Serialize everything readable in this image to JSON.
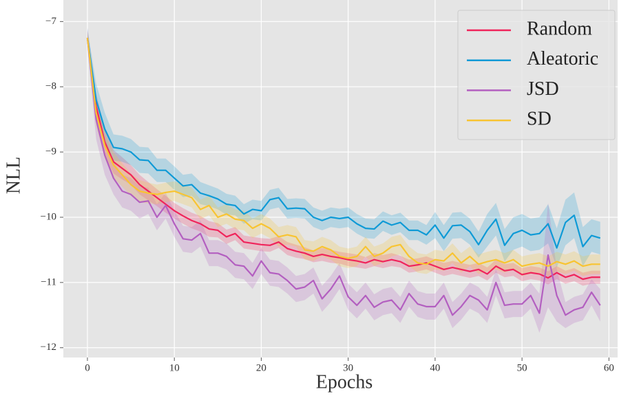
{
  "chart_data": {
    "type": "line",
    "xlabel": "Epochs",
    "ylabel": "NLL",
    "x": [
      0,
      1,
      2,
      3,
      4,
      5,
      6,
      7,
      8,
      9,
      10,
      11,
      12,
      13,
      14,
      15,
      16,
      17,
      18,
      19,
      20,
      21,
      22,
      23,
      24,
      25,
      26,
      27,
      28,
      29,
      30,
      31,
      32,
      33,
      34,
      35,
      36,
      37,
      38,
      39,
      40,
      41,
      42,
      43,
      44,
      45,
      46,
      47,
      48,
      49,
      50,
      51,
      52,
      53,
      54,
      55,
      56,
      57,
      58,
      59
    ],
    "series": [
      {
        "name": "Random",
        "color": "#f0245b",
        "values": [
          -7.25,
          -8.3,
          -8.85,
          -9.15,
          -9.25,
          -9.35,
          -9.5,
          -9.6,
          -9.7,
          -9.8,
          -9.9,
          -9.98,
          -10.05,
          -10.1,
          -10.18,
          -10.2,
          -10.3,
          -10.25,
          -10.38,
          -10.4,
          -10.42,
          -10.43,
          -10.38,
          -10.48,
          -10.52,
          -10.55,
          -10.6,
          -10.57,
          -10.6,
          -10.62,
          -10.65,
          -10.67,
          -10.7,
          -10.65,
          -10.68,
          -10.65,
          -10.68,
          -10.75,
          -10.73,
          -10.7,
          -10.75,
          -10.8,
          -10.77,
          -10.8,
          -10.83,
          -10.8,
          -10.87,
          -10.75,
          -10.82,
          -10.8,
          -10.88,
          -10.85,
          -10.87,
          -10.93,
          -10.85,
          -10.92,
          -10.88,
          -10.95,
          -10.92,
          -10.92
        ],
        "errors": [
          0.1,
          0.2,
          0.2,
          0.18,
          0.17,
          0.15,
          0.15,
          0.14,
          0.13,
          0.13,
          0.12,
          0.12,
          0.12,
          0.12,
          0.12,
          0.11,
          0.11,
          0.1,
          0.1,
          0.1,
          0.1,
          0.1,
          0.09,
          0.1,
          0.1,
          0.09,
          0.09,
          0.1,
          0.1,
          0.09,
          0.1,
          0.1,
          0.09,
          0.1,
          0.1,
          0.1,
          0.09,
          0.1,
          0.1,
          0.1,
          0.1,
          0.1,
          0.1,
          0.1,
          0.1,
          0.1,
          0.1,
          0.1,
          0.1,
          0.1,
          0.1,
          0.1,
          0.1,
          0.1,
          0.1,
          0.1,
          0.1,
          0.1,
          0.1,
          0.1
        ]
      },
      {
        "name": "Aleatoric",
        "color": "#0e9ad6",
        "values": [
          -7.25,
          -8.2,
          -8.65,
          -8.93,
          -8.95,
          -9.0,
          -9.12,
          -9.13,
          -9.28,
          -9.28,
          -9.4,
          -9.52,
          -9.5,
          -9.63,
          -9.67,
          -9.72,
          -9.8,
          -9.82,
          -9.95,
          -9.88,
          -9.9,
          -9.73,
          -9.7,
          -9.87,
          -9.86,
          -9.87,
          -10.0,
          -10.05,
          -10.0,
          -10.02,
          -10.0,
          -10.1,
          -10.17,
          -10.18,
          -10.06,
          -10.12,
          -10.08,
          -10.2,
          -10.2,
          -10.27,
          -10.12,
          -10.32,
          -10.13,
          -10.12,
          -10.22,
          -10.42,
          -10.2,
          -10.03,
          -10.43,
          -10.25,
          -10.2,
          -10.27,
          -10.25,
          -10.1,
          -10.47,
          -10.08,
          -9.97,
          -10.45,
          -10.28,
          -10.32
        ],
        "errors": [
          0.15,
          0.25,
          0.25,
          0.2,
          0.2,
          0.2,
          0.2,
          0.2,
          0.18,
          0.18,
          0.18,
          0.17,
          0.17,
          0.17,
          0.16,
          0.16,
          0.16,
          0.15,
          0.15,
          0.15,
          0.15,
          0.15,
          0.15,
          0.15,
          0.15,
          0.15,
          0.15,
          0.15,
          0.15,
          0.15,
          0.15,
          0.15,
          0.15,
          0.15,
          0.15,
          0.15,
          0.15,
          0.15,
          0.15,
          0.15,
          0.2,
          0.2,
          0.2,
          0.2,
          0.2,
          0.2,
          0.25,
          0.25,
          0.25,
          0.25,
          0.25,
          0.25,
          0.25,
          0.3,
          0.3,
          0.35,
          0.35,
          0.3,
          0.25,
          0.25
        ]
      },
      {
        "name": "JSD",
        "color": "#b35fc0",
        "values": [
          -7.25,
          -8.5,
          -9.05,
          -9.4,
          -9.6,
          -9.65,
          -9.77,
          -9.75,
          -10.0,
          -9.82,
          -10.1,
          -10.33,
          -10.35,
          -10.25,
          -10.55,
          -10.55,
          -10.6,
          -10.73,
          -10.75,
          -10.9,
          -10.67,
          -10.85,
          -10.87,
          -10.97,
          -11.1,
          -11.07,
          -10.97,
          -11.25,
          -11.1,
          -10.9,
          -11.22,
          -11.35,
          -11.2,
          -11.38,
          -11.3,
          -11.27,
          -11.42,
          -11.17,
          -11.33,
          -11.37,
          -11.37,
          -11.2,
          -11.5,
          -11.37,
          -11.2,
          -11.27,
          -11.42,
          -11.0,
          -11.35,
          -11.33,
          -11.33,
          -11.2,
          -11.47,
          -10.58,
          -11.2,
          -11.5,
          -11.42,
          -11.38,
          -11.15,
          -11.35
        ],
        "errors": [
          0.15,
          0.3,
          0.3,
          0.25,
          0.25,
          0.25,
          0.25,
          0.2,
          0.2,
          0.2,
          0.2,
          0.2,
          0.2,
          0.2,
          0.2,
          0.2,
          0.2,
          0.2,
          0.2,
          0.2,
          0.2,
          0.2,
          0.2,
          0.2,
          0.2,
          0.2,
          0.2,
          0.2,
          0.2,
          0.2,
          0.2,
          0.2,
          0.2,
          0.2,
          0.2,
          0.2,
          0.2,
          0.2,
          0.2,
          0.2,
          0.2,
          0.2,
          0.2,
          0.2,
          0.2,
          0.2,
          0.2,
          0.2,
          0.2,
          0.2,
          0.2,
          0.2,
          0.3,
          0.8,
          0.4,
          0.2,
          0.2,
          0.2,
          0.2,
          0.25
        ]
      },
      {
        "name": "SD",
        "color": "#f8c431",
        "values": [
          -7.25,
          -8.4,
          -8.9,
          -9.2,
          -9.35,
          -9.5,
          -9.6,
          -9.63,
          -9.65,
          -9.62,
          -9.6,
          -9.65,
          -9.7,
          -9.88,
          -9.82,
          -10.0,
          -9.95,
          -10.03,
          -10.05,
          -10.17,
          -10.1,
          -10.17,
          -10.3,
          -10.27,
          -10.3,
          -10.5,
          -10.52,
          -10.45,
          -10.5,
          -10.6,
          -10.63,
          -10.6,
          -10.45,
          -10.6,
          -10.55,
          -10.45,
          -10.42,
          -10.6,
          -10.7,
          -10.72,
          -10.65,
          -10.67,
          -10.55,
          -10.7,
          -10.6,
          -10.72,
          -10.68,
          -10.65,
          -10.7,
          -10.65,
          -10.75,
          -10.72,
          -10.7,
          -10.75,
          -10.68,
          -10.72,
          -10.67,
          -10.75,
          -10.72,
          -10.72
        ],
        "errors": [
          0.1,
          0.2,
          0.2,
          0.2,
          0.18,
          0.17,
          0.17,
          0.16,
          0.15,
          0.15,
          0.15,
          0.15,
          0.15,
          0.15,
          0.15,
          0.15,
          0.15,
          0.15,
          0.15,
          0.15,
          0.15,
          0.15,
          0.15,
          0.15,
          0.15,
          0.15,
          0.15,
          0.15,
          0.15,
          0.15,
          0.15,
          0.15,
          0.15,
          0.15,
          0.15,
          0.15,
          0.15,
          0.15,
          0.15,
          0.15,
          0.15,
          0.15,
          0.15,
          0.15,
          0.15,
          0.15,
          0.15,
          0.15,
          0.15,
          0.15,
          0.15,
          0.15,
          0.15,
          0.15,
          0.15,
          0.15,
          0.15,
          0.15,
          0.15,
          0.15
        ]
      }
    ],
    "xlim": [
      -2.77,
      61.0
    ],
    "ylim": [
      -12.15,
      -6.67
    ],
    "xticks": [
      0,
      10,
      20,
      30,
      40,
      50,
      60
    ],
    "yticks": [
      {
        "value": -12,
        "label": "−12"
      },
      {
        "value": -11,
        "label": "−11"
      },
      {
        "value": -10,
        "label": "−10"
      },
      {
        "value": -9,
        "label": "−9"
      },
      {
        "value": -8,
        "label": "−8"
      },
      {
        "value": -7,
        "label": "−7"
      }
    ],
    "grid": true,
    "legend": "upper right"
  }
}
